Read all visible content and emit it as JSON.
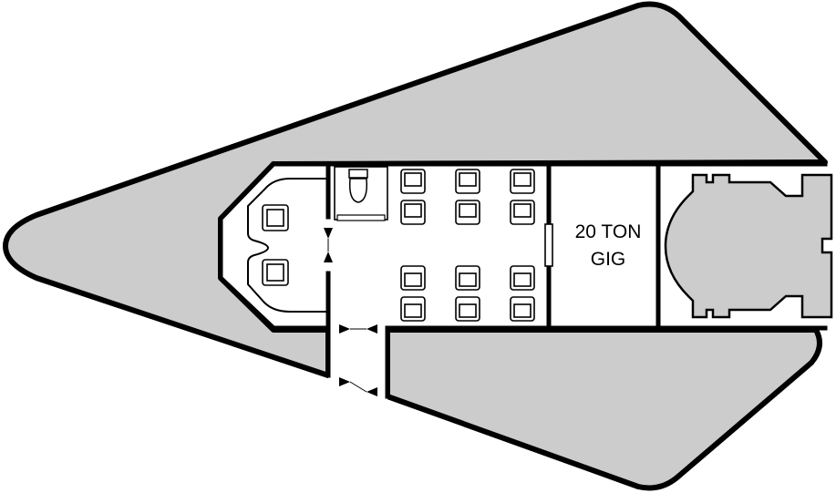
{
  "deck_plan": {
    "bay_label_line1": "20 TON",
    "bay_label_line2": "GIG"
  },
  "colors": {
    "hull_fill": "#cccccc",
    "interior_fill": "#ffffff",
    "line": "#000000"
  }
}
